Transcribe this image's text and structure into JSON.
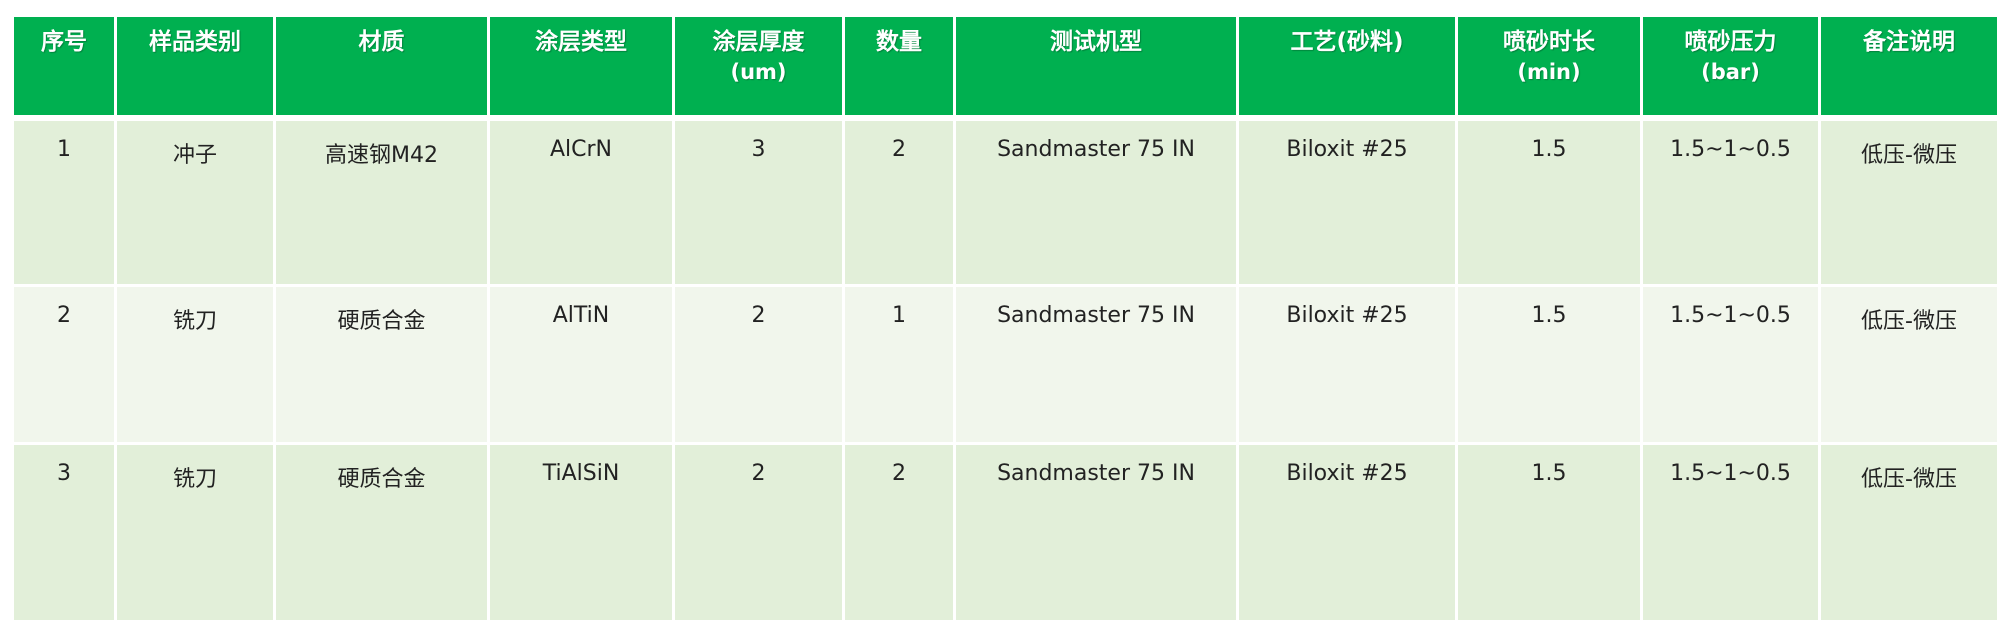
{
  "table": {
    "headers": [
      {
        "label": "序号",
        "sub": ""
      },
      {
        "label": "样品类别",
        "sub": ""
      },
      {
        "label": "材质",
        "sub": ""
      },
      {
        "label": "涂层类型",
        "sub": ""
      },
      {
        "label": "涂层厚度",
        "sub": "(um)"
      },
      {
        "label": "数量",
        "sub": ""
      },
      {
        "label": "测试机型",
        "sub": ""
      },
      {
        "label": "工艺(砂料)",
        "sub": ""
      },
      {
        "label": "喷砂时长",
        "sub": "(min)"
      },
      {
        "label": "喷砂压力",
        "sub": "(bar)"
      },
      {
        "label": "备注说明",
        "sub": ""
      }
    ],
    "rows": [
      [
        "1",
        "冲子",
        "高速钢M42",
        "AlCrN",
        "3",
        "2",
        "Sandmaster 75 IN",
        "Biloxit #25",
        "1.5",
        "1.5~1~0.5",
        "低压-微压"
      ],
      [
        "2",
        "铣刀",
        "硬质合金",
        "AlTiN",
        "2",
        "1",
        "Sandmaster 75 IN",
        "Biloxit #25",
        "1.5",
        "1.5~1~0.5",
        "低压-微压"
      ],
      [
        "3",
        "铣刀",
        "硬质合金",
        "TiAlSiN",
        "2",
        "2",
        "Sandmaster 75 IN",
        "Biloxit #25",
        "1.5",
        "1.5~1~0.5",
        "低压-微压"
      ]
    ]
  },
  "colors": {
    "header": "#00b050",
    "row_odd": "#e2efd9",
    "row_even": "#f1f6ec"
  }
}
